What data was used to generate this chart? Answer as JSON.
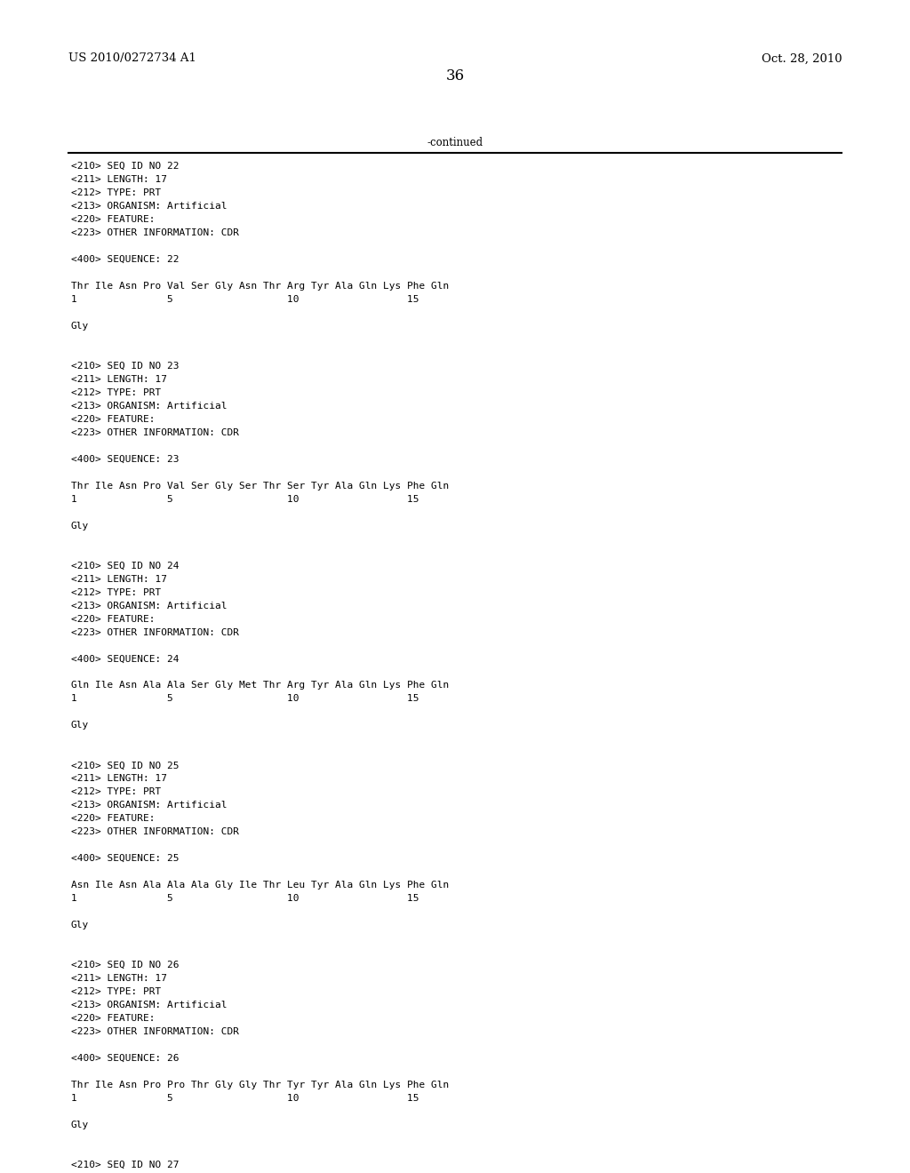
{
  "header_left": "US 2010/0272734 A1",
  "header_right": "Oct. 28, 2010",
  "page_number": "36",
  "continued_text": "-continued",
  "background_color": "#ffffff",
  "text_color": "#000000",
  "font_size_header": 9.5,
  "font_size_page": 12,
  "font_size_body": 8.5,
  "font_size_mono": 8.0,
  "content_lines": [
    "<210> SEQ ID NO 22",
    "<211> LENGTH: 17",
    "<212> TYPE: PRT",
    "<213> ORGANISM: Artificial",
    "<220> FEATURE:",
    "<223> OTHER INFORMATION: CDR",
    "",
    "<400> SEQUENCE: 22",
    "",
    "Thr Ile Asn Pro Val Ser Gly Asn Thr Arg Tyr Ala Gln Lys Phe Gln",
    "1               5                   10                  15",
    "",
    "Gly",
    "",
    "",
    "<210> SEQ ID NO 23",
    "<211> LENGTH: 17",
    "<212> TYPE: PRT",
    "<213> ORGANISM: Artificial",
    "<220> FEATURE:",
    "<223> OTHER INFORMATION: CDR",
    "",
    "<400> SEQUENCE: 23",
    "",
    "Thr Ile Asn Pro Val Ser Gly Ser Thr Ser Tyr Ala Gln Lys Phe Gln",
    "1               5                   10                  15",
    "",
    "Gly",
    "",
    "",
    "<210> SEQ ID NO 24",
    "<211> LENGTH: 17",
    "<212> TYPE: PRT",
    "<213> ORGANISM: Artificial",
    "<220> FEATURE:",
    "<223> OTHER INFORMATION: CDR",
    "",
    "<400> SEQUENCE: 24",
    "",
    "Gln Ile Asn Ala Ala Ser Gly Met Thr Arg Tyr Ala Gln Lys Phe Gln",
    "1               5                   10                  15",
    "",
    "Gly",
    "",
    "",
    "<210> SEQ ID NO 25",
    "<211> LENGTH: 17",
    "<212> TYPE: PRT",
    "<213> ORGANISM: Artificial",
    "<220> FEATURE:",
    "<223> OTHER INFORMATION: CDR",
    "",
    "<400> SEQUENCE: 25",
    "",
    "Asn Ile Asn Ala Ala Ala Gly Ile Thr Leu Tyr Ala Gln Lys Phe Gln",
    "1               5                   10                  15",
    "",
    "Gly",
    "",
    "",
    "<210> SEQ ID NO 26",
    "<211> LENGTH: 17",
    "<212> TYPE: PRT",
    "<213> ORGANISM: Artificial",
    "<220> FEATURE:",
    "<223> OTHER INFORMATION: CDR",
    "",
    "<400> SEQUENCE: 26",
    "",
    "Thr Ile Asn Pro Pro Thr Gly Gly Thr Tyr Tyr Ala Gln Lys Phe Gln",
    "1               5                   10                  15",
    "",
    "Gly",
    "",
    "",
    "<210> SEQ ID NO 27"
  ]
}
